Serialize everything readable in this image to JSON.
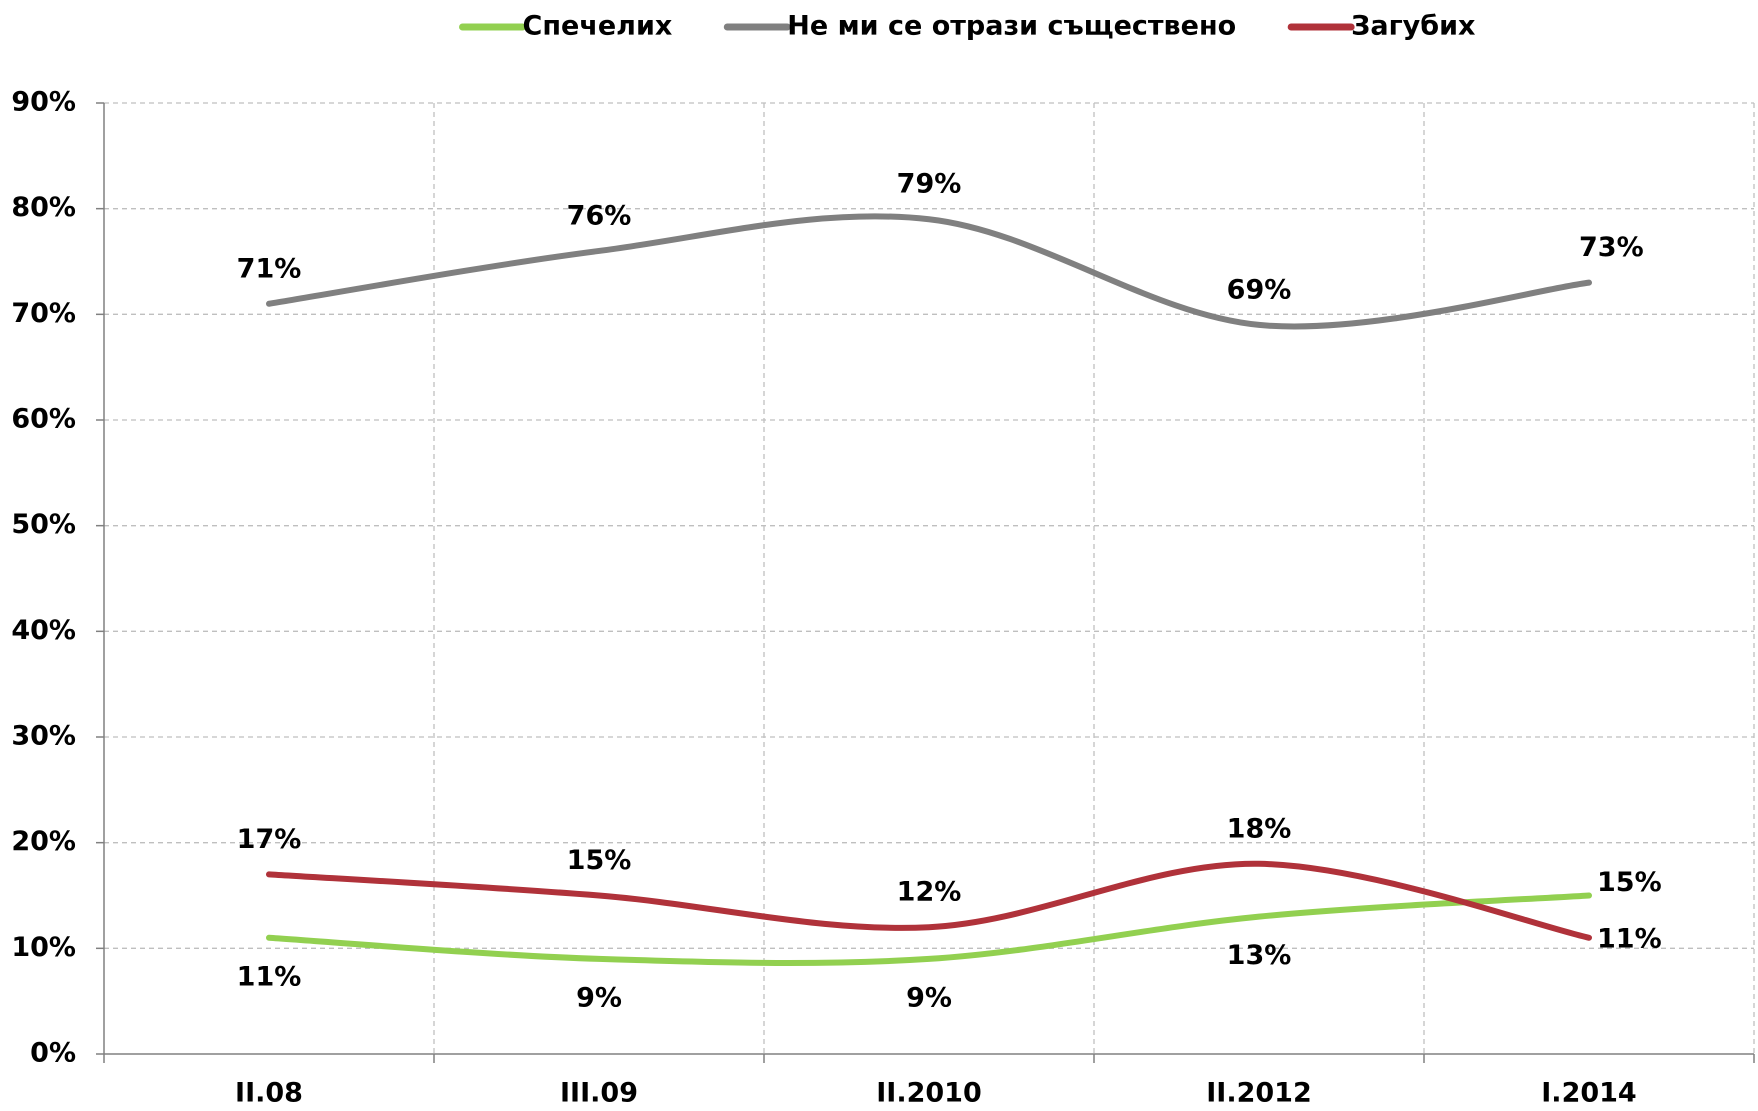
{
  "chart_data": {
    "type": "line",
    "categories": [
      "II.08",
      "III.09",
      "II.2010",
      "II.2012",
      "I.2014"
    ],
    "series": [
      {
        "name": "Спечелих",
        "color": "#92d050",
        "values": [
          11,
          9,
          9,
          13,
          15
        ],
        "value_labels": [
          "11%",
          "9%",
          "9%",
          "13%",
          "15%"
        ]
      },
      {
        "name": "Не ми се отрази съществено",
        "color": "#808080",
        "values": [
          71,
          76,
          79,
          69,
          73
        ],
        "value_labels": [
          "71%",
          "76%",
          "79%",
          "69%",
          "73%"
        ]
      },
      {
        "name": "Загубих",
        "color": "#b0323a",
        "values": [
          17,
          15,
          12,
          18,
          11
        ],
        "value_labels": [
          "17%",
          "15%",
          "12%",
          "18%",
          "11%"
        ]
      }
    ],
    "ylim": [
      0,
      90
    ],
    "yticks": [
      {
        "value": 0,
        "label": "0%"
      },
      {
        "value": 10,
        "label": "10%"
      },
      {
        "value": 20,
        "label": "20%"
      },
      {
        "value": 30,
        "label": "30%"
      },
      {
        "value": 40,
        "label": "40%"
      },
      {
        "value": 50,
        "label": "50%"
      },
      {
        "value": 60,
        "label": "60%"
      },
      {
        "value": 70,
        "label": "70%"
      },
      {
        "value": 80,
        "label": "80%"
      },
      {
        "value": 90,
        "label": "90%"
      }
    ],
    "grid": true,
    "legend": "top"
  }
}
